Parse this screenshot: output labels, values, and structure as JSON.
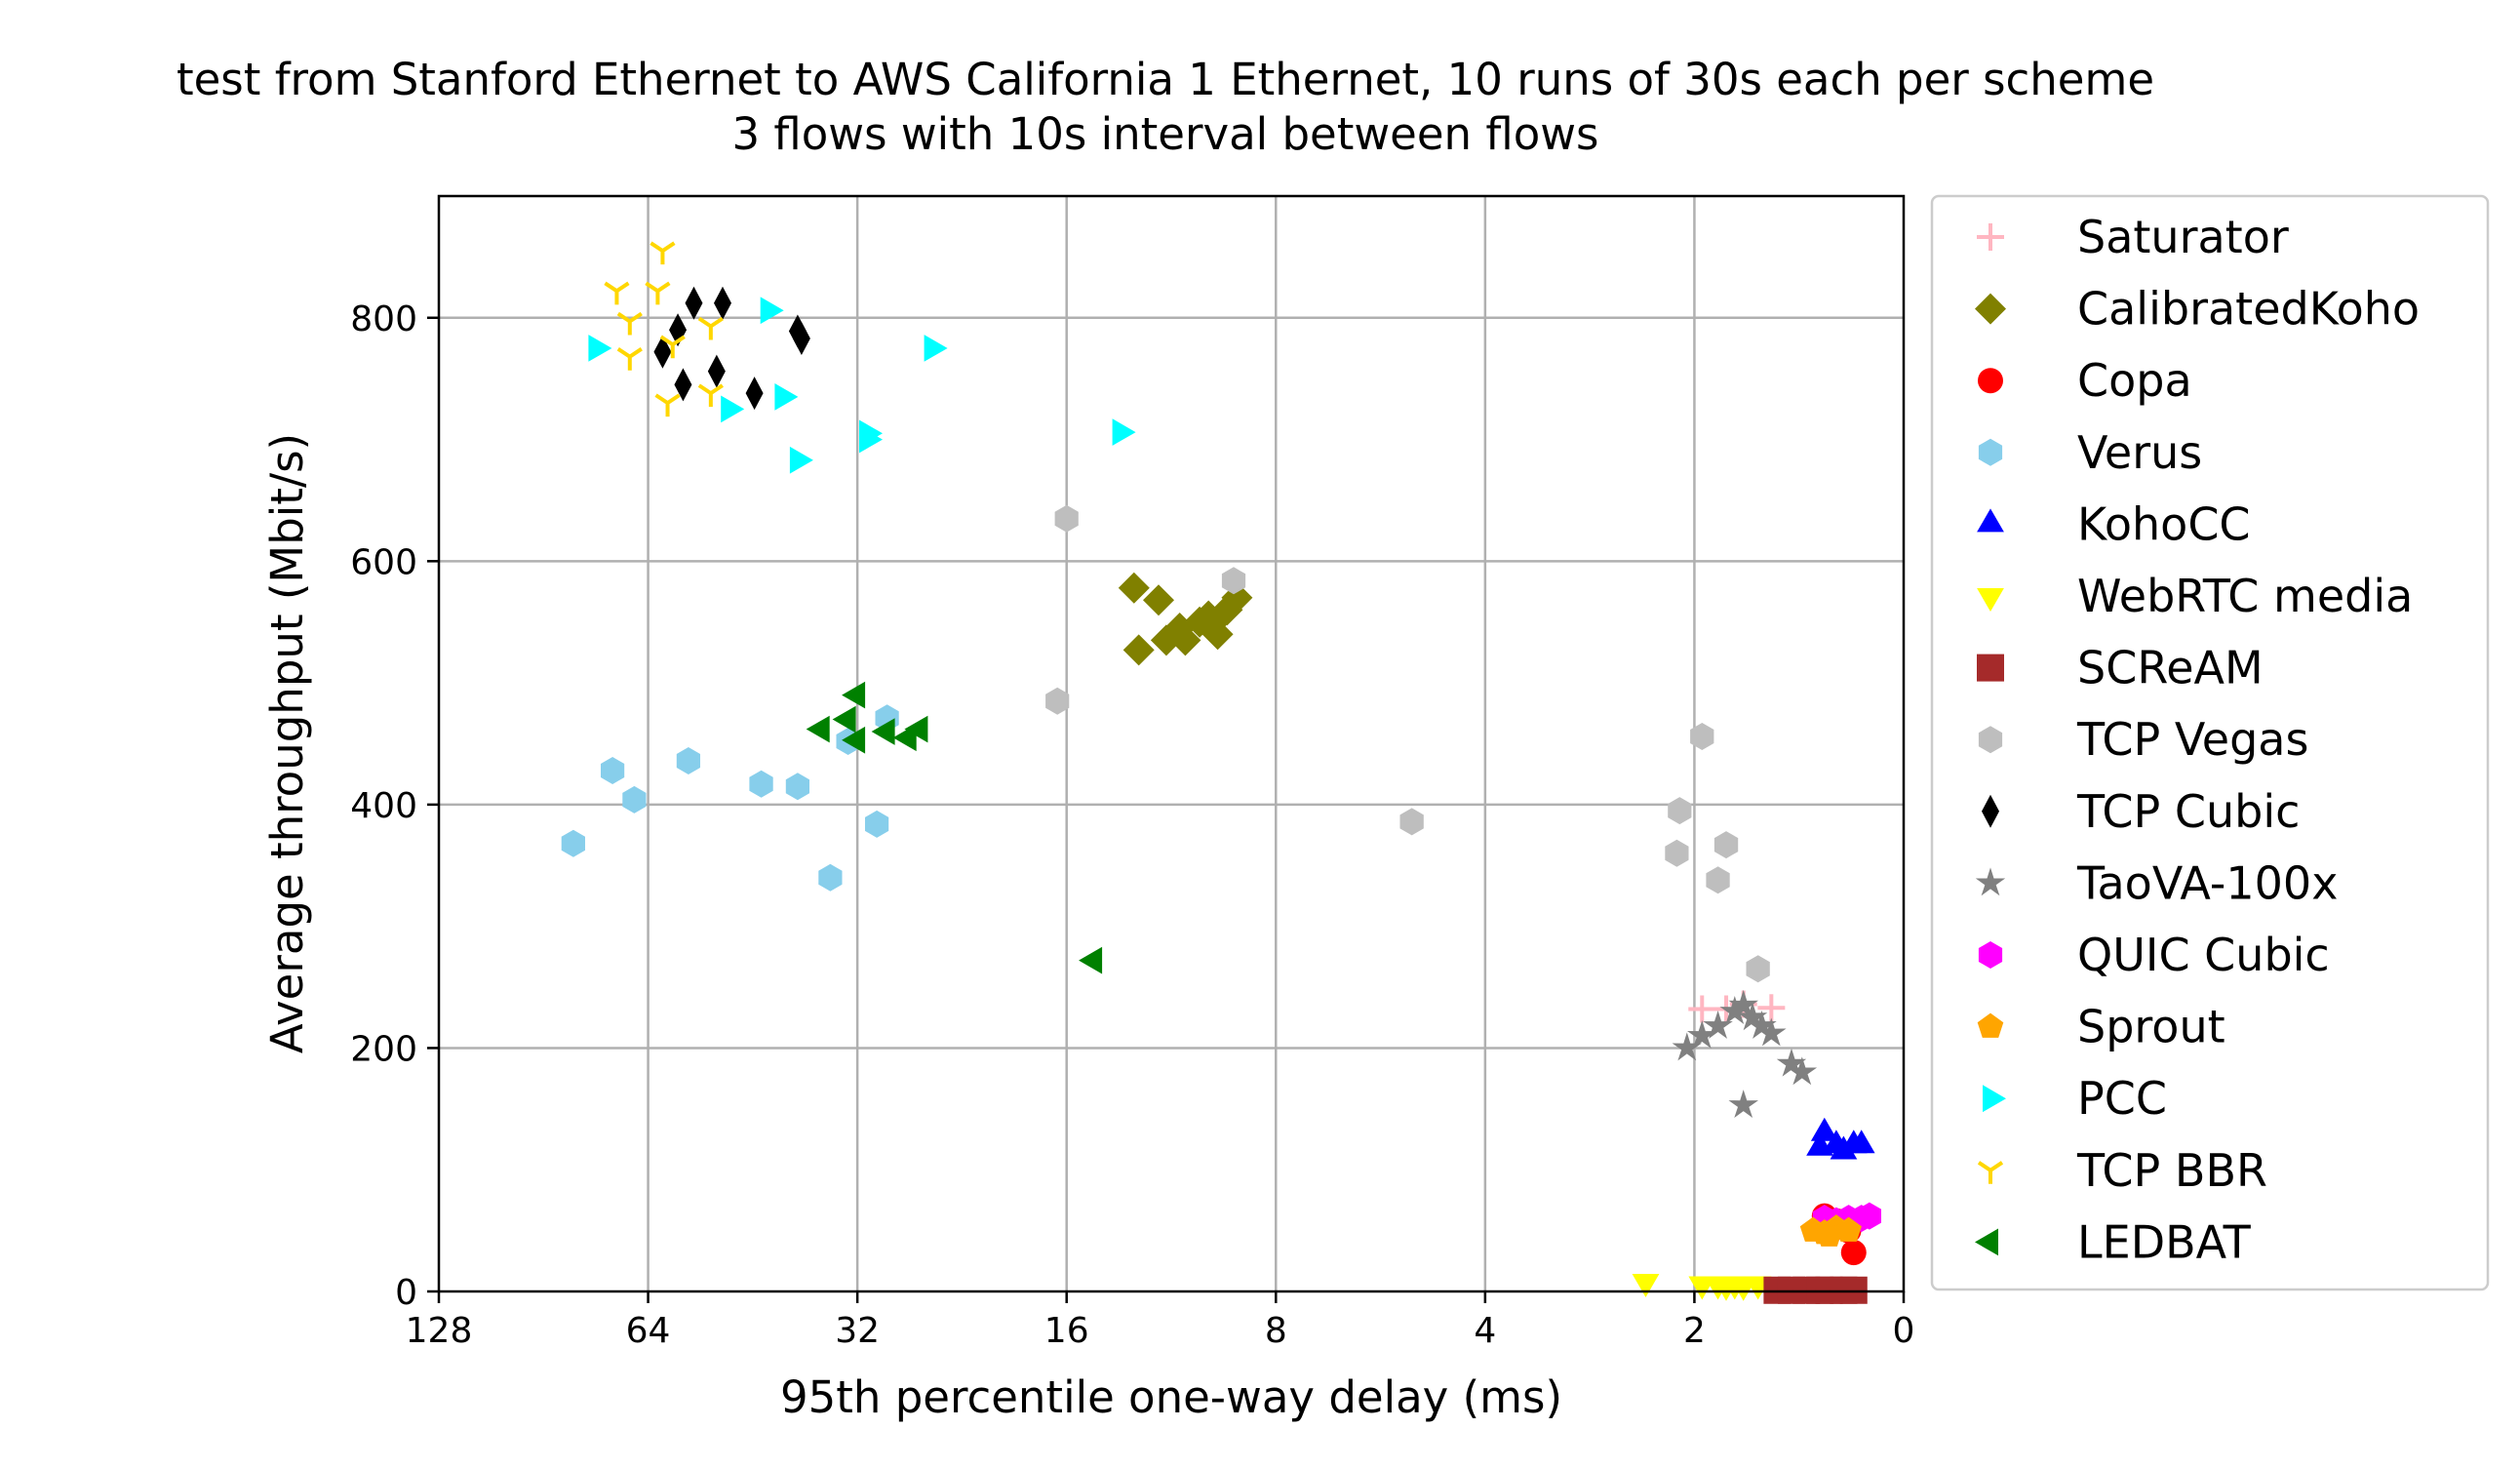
{
  "chart_data": {
    "type": "scatter",
    "title": [
      "test from Stanford Ethernet to AWS California 1 Ethernet, 10 runs of 30s each per scheme",
      "3 flows with 10s interval between flows"
    ],
    "xlabel": "95th percentile one-way delay (ms)",
    "ylabel": "Average throughput (Mbit/s)",
    "x_scale": "log2, inverted",
    "x_ticks": [
      "128",
      "64",
      "32",
      "16",
      "8",
      "4",
      "2",
      "0"
    ],
    "y_ticks": [
      "0",
      "200",
      "400",
      "600",
      "800"
    ],
    "ylim": [
      0,
      900
    ],
    "grid": true,
    "legend_position": "outside-right",
    "series": [
      {
        "name": "Saturator",
        "marker": "plus",
        "color": "#ffb6c1",
        "points": [
          [
            1.95,
            232
          ],
          [
            1.8,
            232
          ],
          [
            1.7,
            236
          ],
          [
            1.55,
            233
          ]
        ]
      },
      {
        "name": "CalibratedKoho",
        "marker": "diamond",
        "color": "#808000",
        "points": [
          [
            12.8,
            578
          ],
          [
            11.8,
            568
          ],
          [
            12.6,
            527
          ],
          [
            11.5,
            535
          ],
          [
            11.0,
            545
          ],
          [
            10.8,
            535
          ],
          [
            10.3,
            550
          ],
          [
            10.0,
            555
          ],
          [
            9.9,
            548
          ],
          [
            9.7,
            540
          ],
          [
            9.4,
            560
          ],
          [
            9.1,
            570
          ]
        ]
      },
      {
        "name": "Copa",
        "marker": "circle",
        "color": "#ff0000",
        "points": [
          [
            1.3,
            62
          ],
          [
            1.25,
            58
          ],
          [
            1.2,
            50
          ],
          [
            1.18,
            32
          ]
        ]
      },
      {
        "name": "Verus",
        "marker": "hexagon",
        "color": "#87ceeb",
        "points": [
          [
            82,
            368
          ],
          [
            72,
            428
          ],
          [
            67,
            404
          ],
          [
            56,
            436
          ],
          [
            44,
            417
          ],
          [
            39,
            415
          ],
          [
            35,
            340
          ],
          [
            33,
            452
          ],
          [
            30,
            384
          ],
          [
            29,
            471
          ]
        ]
      },
      {
        "name": "KohoCC",
        "marker": "triangle-up",
        "color": "#0000ff",
        "points": [
          [
            1.3,
            130
          ],
          [
            1.25,
            120
          ],
          [
            1.22,
            115
          ],
          [
            1.18,
            120
          ],
          [
            1.15,
            120
          ],
          [
            1.32,
            118
          ]
        ]
      },
      {
        "name": "WebRTC media",
        "marker": "triangle-down",
        "color": "#ffff00",
        "points": [
          [
            2.35,
            8
          ],
          [
            1.95,
            6
          ],
          [
            1.85,
            6
          ],
          [
            1.8,
            5
          ],
          [
            1.75,
            6
          ],
          [
            1.7,
            5
          ],
          [
            1.62,
            6
          ]
        ]
      },
      {
        "name": "SCReAM",
        "marker": "square",
        "color": "#a52a2a",
        "points": [
          [
            1.52,
            1
          ],
          [
            1.45,
            1
          ],
          [
            1.38,
            1
          ],
          [
            1.32,
            1
          ],
          [
            1.28,
            1
          ],
          [
            1.22,
            1
          ],
          [
            1.18,
            1
          ]
        ]
      },
      {
        "name": "TCP Vegas",
        "marker": "hexagon",
        "color": "#bebebe",
        "points": [
          [
            16,
            635
          ],
          [
            16.5,
            485
          ],
          [
            9.2,
            584
          ],
          [
            5.1,
            386
          ],
          [
            1.95,
            456
          ],
          [
            2.1,
            395
          ],
          [
            2.12,
            360
          ],
          [
            1.8,
            367
          ],
          [
            1.85,
            338
          ],
          [
            1.62,
            265
          ]
        ]
      },
      {
        "name": "TCP Cubic",
        "marker": "thin-diamond",
        "color": "#000000",
        "points": [
          [
            55,
            812
          ],
          [
            50,
            812
          ],
          [
            58,
            790
          ],
          [
            61,
            772
          ],
          [
            57,
            745
          ],
          [
            51,
            756
          ],
          [
            45,
            738
          ],
          [
            39,
            789
          ],
          [
            38.5,
            783
          ]
        ]
      },
      {
        "name": "TaoVA-100x",
        "marker": "star",
        "color": "#808080",
        "points": [
          [
            2.05,
            200
          ],
          [
            1.95,
            210
          ],
          [
            1.85,
            218
          ],
          [
            1.75,
            230
          ],
          [
            1.7,
            235
          ],
          [
            1.65,
            225
          ],
          [
            1.6,
            218
          ],
          [
            1.55,
            212
          ],
          [
            1.45,
            187
          ],
          [
            1.4,
            180
          ],
          [
            1.7,
            153
          ]
        ]
      },
      {
        "name": "QUIC Cubic",
        "marker": "hexagon",
        "color": "#ff00ff",
        "points": [
          [
            1.3,
            60
          ],
          [
            1.25,
            58
          ],
          [
            1.2,
            60
          ],
          [
            1.15,
            60
          ],
          [
            1.12,
            62
          ]
        ]
      },
      {
        "name": "Sprout",
        "marker": "pentagon",
        "color": "#ffa500",
        "points": [
          [
            1.35,
            50
          ],
          [
            1.3,
            48
          ],
          [
            1.25,
            52
          ],
          [
            1.2,
            50
          ],
          [
            1.28,
            46
          ]
        ]
      },
      {
        "name": "PCC",
        "marker": "triangle-right",
        "color": "#00ffff",
        "points": [
          [
            76,
            775
          ],
          [
            43,
            806
          ],
          [
            41,
            735
          ],
          [
            49,
            725
          ],
          [
            39,
            683
          ],
          [
            31,
            705
          ],
          [
            31,
            700
          ],
          [
            25,
            775
          ],
          [
            13.4,
            706
          ]
        ]
      },
      {
        "name": "TCP BBR",
        "marker": "tri-down",
        "color": "#ffd700",
        "points": [
          [
            61,
            855
          ],
          [
            71,
            822
          ],
          [
            62,
            822
          ],
          [
            68,
            797
          ],
          [
            52,
            793
          ],
          [
            68,
            768
          ],
          [
            59,
            778
          ],
          [
            60,
            730
          ],
          [
            52,
            738
          ]
        ]
      },
      {
        "name": "LEDBAT",
        "marker": "triangle-left",
        "color": "#008000",
        "points": [
          [
            32,
            490
          ],
          [
            33,
            470
          ],
          [
            36,
            462
          ],
          [
            32,
            453
          ],
          [
            29,
            460
          ],
          [
            27,
            455
          ],
          [
            26,
            462
          ],
          [
            14.6,
            272
          ]
        ]
      }
    ]
  }
}
